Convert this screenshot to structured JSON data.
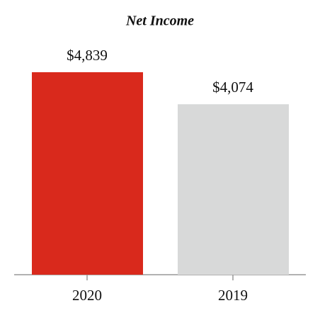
{
  "chart_data": {
    "type": "bar",
    "title": "Net Income",
    "categories": [
      "2020",
      "2019"
    ],
    "values": [
      4839,
      4074
    ],
    "value_labels": [
      "$4,839",
      "$4,074"
    ],
    "colors": [
      "#d9291c",
      "#d8d9d9"
    ],
    "ylim": [
      0,
      5000
    ]
  }
}
